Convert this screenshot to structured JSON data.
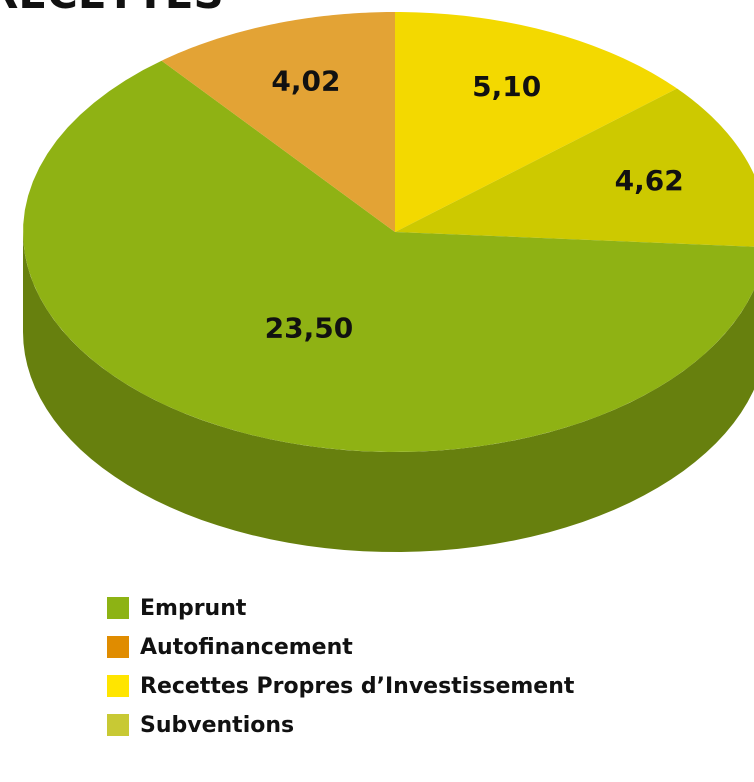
{
  "chart_data": {
    "type": "pie3d",
    "title": "RECETTES",
    "categories": [
      "Emprunt",
      "Autofinancement",
      "Recettes Propres d’Investissement",
      "Subventions"
    ],
    "values": [
      23.5,
      4.02,
      5.1,
      4.62
    ],
    "value_labels": [
      "23,50",
      "4,02",
      "5,10",
      "4,62"
    ],
    "colors": [
      "#8fb214",
      "#e3a335",
      "#f3d900",
      "#cdc900"
    ],
    "legend_colors": [
      "#8db314",
      "#e08c00",
      "#ffe500",
      "#c8c934"
    ],
    "legend": "bottom"
  }
}
